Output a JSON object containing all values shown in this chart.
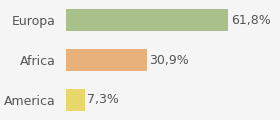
{
  "categories": [
    "America",
    "Africa",
    "Europa"
  ],
  "values": [
    7.3,
    30.9,
    61.8
  ],
  "labels": [
    "7,3%",
    "30,9%",
    "61,8%"
  ],
  "bar_colors": [
    "#e8d86a",
    "#e8b07a",
    "#a8c08a"
  ],
  "background_color": "#f5f5f5",
  "xlim": [
    0,
    80
  ],
  "bar_height": 0.55,
  "label_fontsize": 9,
  "tick_fontsize": 9
}
